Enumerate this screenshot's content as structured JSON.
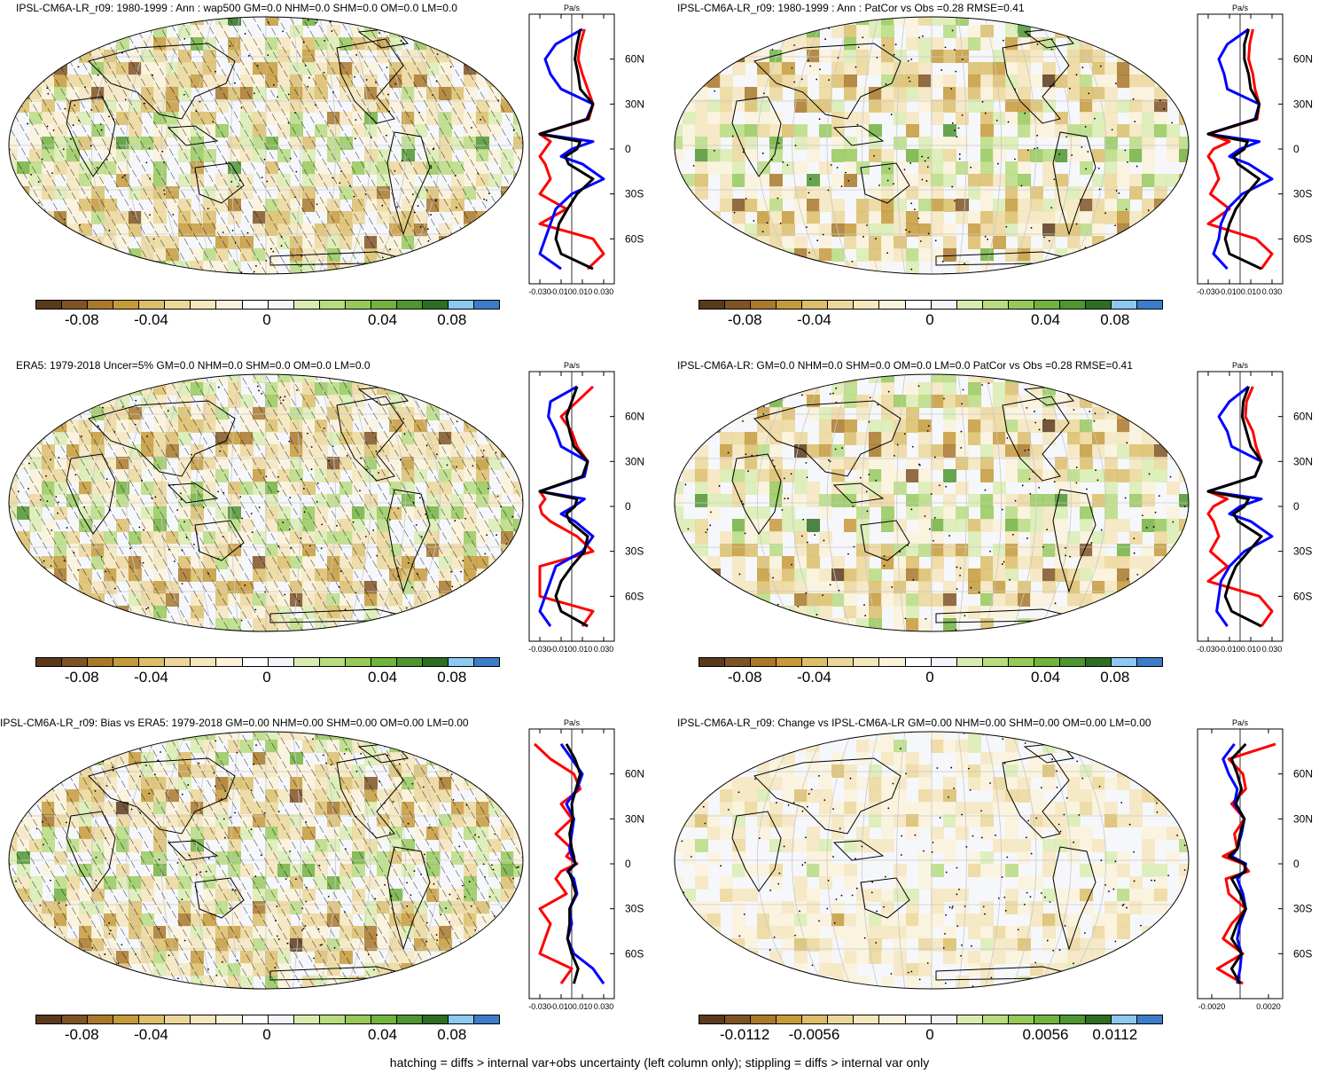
{
  "footer": "hatching = diffs > internal var+obs uncertainty (left column only); stippling = diffs > internal var only",
  "colors": {
    "palette": [
      "#5a3a1c",
      "#7f5424",
      "#a9782a",
      "#c59a3a",
      "#dcbe6a",
      "#ecd79a",
      "#f4e6bd",
      "#faf2da",
      "#ffffff",
      "#f3f5fb",
      "#d9ecb0",
      "#b8dc80",
      "#96c95a",
      "#72b23e",
      "#4f9530",
      "#2f6e22",
      "#8cc8f0",
      "#3c7cc8"
    ],
    "land_outline": "#000000",
    "grid": "#c9c9c9",
    "series_red": "#ff0000",
    "series_blue": "#0000ff",
    "series_black": "#000000"
  },
  "panels": [
    {
      "title": "IPSL-CM6A-LR_r09: 1980-1999 : Ann : wap500 GM=0.0 NHM=0.0 SHM=0.0 OM=0.0 LM=0.0",
      "hatching": true,
      "colorbar_labels": [
        "-0.08",
        "-0.04",
        "0",
        "0.04",
        "0.08"
      ],
      "zonal_unit": "Pa/s",
      "zonal_xticks": [
        "-0.030",
        "-0.010",
        "0.010",
        "0.030"
      ],
      "zonal_xlim": [
        -0.04,
        0.04
      ],
      "zonal_yticks": [
        "60N",
        "30N",
        "0",
        "30S",
        "60S"
      ]
    },
    {
      "title": "IPSL-CM6A-LR_r09: 1980-1999 : Ann : PatCor vs Obs =0.28 RMSE=0.41",
      "hatching": false,
      "colorbar_labels": [
        "-0.08",
        "-0.04",
        "0",
        "0.04",
        "0.08"
      ],
      "zonal_unit": "Pa/s",
      "zonal_xticks": [
        "-0.030",
        "-0.010",
        "0.010",
        "0.030"
      ],
      "zonal_xlim": [
        -0.04,
        0.04
      ],
      "zonal_yticks": [
        "60N",
        "30N",
        "0",
        "30S",
        "60S"
      ]
    },
    {
      "title": "ERA5: 1979-2018 Uncer=5% GM=0.0 NHM=0.0 SHM=0.0 OM=0.0 LM=0.0",
      "hatching": true,
      "colorbar_labels": [
        "-0.08",
        "-0.04",
        "0",
        "0.04",
        "0.08"
      ],
      "zonal_unit": "Pa/s",
      "zonal_xticks": [
        "-0.030",
        "-0.010",
        "0.010",
        "0.030"
      ],
      "zonal_xlim": [
        -0.04,
        0.04
      ],
      "zonal_yticks": [
        "60N",
        "30N",
        "0",
        "30S",
        "60S"
      ]
    },
    {
      "title": "IPSL-CM6A-LR: GM=0.0 NHM=0.0 SHM=0.0 OM=0.0 LM=0.0 PatCor vs Obs =0.28 RMSE=0.41",
      "hatching": false,
      "colorbar_labels": [
        "-0.08",
        "-0.04",
        "0",
        "0.04",
        "0.08"
      ],
      "zonal_unit": "Pa/s",
      "zonal_xticks": [
        "-0.030",
        "-0.010",
        "0.010",
        "0.030"
      ],
      "zonal_xlim": [
        -0.04,
        0.04
      ],
      "zonal_yticks": [
        "60N",
        "30N",
        "0",
        "30S",
        "60S"
      ]
    },
    {
      "title": "IPSL-CM6A-LR_r09: Bias vs ERA5: 1979-2018 GM=0.00 NHM=0.00 SHM=0.00 OM=0.00 LM=0.00",
      "hatching": true,
      "colorbar_labels": [
        "-0.08",
        "-0.04",
        "0",
        "0.04",
        "0.08"
      ],
      "zonal_unit": "Pa/s",
      "zonal_xticks": [
        "-0.030",
        "-0.010",
        "0.010",
        "0.030"
      ],
      "zonal_xlim": [
        -0.04,
        0.04
      ],
      "zonal_yticks": [
        "60N",
        "30N",
        "0",
        "30S",
        "60S"
      ]
    },
    {
      "title": "IPSL-CM6A-LR_r09: Change vs IPSL-CM6A-LR GM=0.00 NHM=0.00 SHM=0.00 OM=0.00 LM=0.00",
      "hatching": false,
      "colorbar_labels": [
        "-0.0112",
        "-0.0056",
        "0",
        "0.0056",
        "0.0112"
      ],
      "zonal_unit": "Pa/s",
      "zonal_xticks": [
        "-0.0020",
        "0.0020"
      ],
      "zonal_xlim": [
        -0.003,
        0.003
      ],
      "zonal_yticks": [
        "60N",
        "30N",
        "0",
        "30S",
        "60S"
      ]
    }
  ],
  "chart_data": [
    {
      "type": "line",
      "title": "IPSL-CM6A-LR_r09: 1980-1999 : Ann : wap500 GM=0.0 NHM=0.0 SHM=0.0 OM=0.0 LM=0.0",
      "xlabel": "Pa/s",
      "xlim": [
        -0.04,
        0.04
      ],
      "ylim": [
        -90,
        90
      ],
      "y": [
        80,
        70,
        60,
        50,
        40,
        30,
        20,
        10,
        5,
        0,
        -5,
        -10,
        -20,
        -30,
        -40,
        -50,
        -60,
        -70,
        -80
      ],
      "series": [
        {
          "color": "#ff0000",
          "values": [
            0.012,
            0.008,
            0.006,
            0.01,
            0.015,
            0.02,
            0.016,
            -0.03,
            -0.02,
            -0.025,
            -0.03,
            -0.025,
            -0.02,
            -0.03,
            -0.005,
            -0.03,
            0.02,
            0.03,
            0.015
          ]
        },
        {
          "color": "#0000ff",
          "values": [
            0.01,
            -0.015,
            -0.025,
            -0.02,
            -0.01,
            0.02,
            0.014,
            -0.03,
            0.02,
            0.0,
            -0.01,
            0.01,
            0.03,
            0.0,
            -0.015,
            -0.02,
            -0.025,
            -0.03,
            -0.01
          ]
        },
        {
          "color": "#000000",
          "values": [
            0.008,
            0.005,
            0.003,
            0.006,
            0.008,
            0.02,
            0.015,
            -0.03,
            0.008,
            0.005,
            -0.006,
            -0.003,
            0.02,
            0.005,
            -0.004,
            -0.012,
            -0.015,
            -0.01,
            0.02
          ]
        }
      ]
    },
    {
      "type": "line",
      "title": "IPSL-CM6A-LR_r09: 1980-1999 : Ann : PatCor vs Obs =0.28 RMSE=0.41",
      "xlabel": "Pa/s",
      "xlim": [
        -0.04,
        0.04
      ],
      "ylim": [
        -90,
        90
      ],
      "y": [
        80,
        70,
        60,
        50,
        40,
        30,
        20,
        10,
        5,
        0,
        -5,
        -10,
        -20,
        -30,
        -40,
        -50,
        -60,
        -70,
        -80
      ],
      "series": [
        {
          "color": "#ff0000",
          "values": [
            0.012,
            0.009,
            0.008,
            0.012,
            0.014,
            0.018,
            0.016,
            -0.03,
            -0.01,
            -0.025,
            -0.03,
            -0.025,
            -0.02,
            -0.028,
            -0.01,
            -0.03,
            0.015,
            0.03,
            0.02
          ]
        },
        {
          "color": "#0000ff",
          "values": [
            0.008,
            -0.012,
            -0.02,
            -0.015,
            -0.012,
            0.018,
            0.014,
            -0.03,
            0.018,
            0.0,
            -0.01,
            0.008,
            0.03,
            0.002,
            -0.012,
            -0.018,
            -0.02,
            -0.025,
            -0.012
          ]
        },
        {
          "color": "#000000",
          "values": [
            0.008,
            0.004,
            0.004,
            0.008,
            0.01,
            0.018,
            0.015,
            -0.03,
            0.007,
            0.004,
            -0.006,
            -0.002,
            0.018,
            0.006,
            -0.004,
            -0.01,
            -0.014,
            -0.01,
            0.02
          ]
        }
      ]
    },
    {
      "type": "line",
      "title": "ERA5: 1979-2018 Uncer=5% GM=0.0 NHM=0.0 SHM=0.0 OM=0.0 LM=0.0",
      "xlabel": "Pa/s",
      "xlim": [
        -0.04,
        0.04
      ],
      "ylim": [
        -90,
        90
      ],
      "y": [
        80,
        70,
        60,
        50,
        40,
        30,
        20,
        10,
        5,
        0,
        -5,
        -10,
        -20,
        -30,
        -40,
        -50,
        -60,
        -70,
        -80
      ],
      "series": [
        {
          "color": "#ff0000",
          "values": [
            0.02,
            0.005,
            -0.01,
            0.0,
            0.005,
            0.015,
            0.01,
            -0.03,
            -0.025,
            -0.03,
            -0.028,
            -0.02,
            0.005,
            0.02,
            -0.03,
            -0.03,
            -0.03,
            0.02,
            0.01
          ]
        },
        {
          "color": "#0000ff",
          "values": [
            0.005,
            -0.02,
            -0.022,
            -0.015,
            -0.01,
            0.015,
            0.012,
            -0.03,
            0.012,
            0.002,
            -0.01,
            0.003,
            0.02,
            0.01,
            -0.015,
            -0.02,
            -0.025,
            -0.03,
            -0.02
          ]
        },
        {
          "color": "#000000",
          "values": [
            0.005,
            0.0,
            -0.005,
            -0.002,
            0.002,
            0.015,
            0.01,
            -0.03,
            0.005,
            0.003,
            -0.005,
            -0.002,
            0.015,
            0.012,
            0.0,
            -0.01,
            -0.015,
            -0.01,
            0.015
          ]
        }
      ]
    },
    {
      "type": "line",
      "title": "IPSL-CM6A-LR: GM=0.0 NHM=0.0 SHM=0.0 OM=0.0 LM=0.0 PatCor vs Obs =0.28 RMSE=0.41",
      "xlabel": "Pa/s",
      "xlim": [
        -0.04,
        0.04
      ],
      "ylim": [
        -90,
        90
      ],
      "y": [
        80,
        70,
        60,
        50,
        40,
        30,
        20,
        10,
        5,
        0,
        -5,
        -10,
        -20,
        -30,
        -40,
        -50,
        -60,
        -70,
        -80
      ],
      "series": [
        {
          "color": "#ff0000",
          "values": [
            0.012,
            0.006,
            0.005,
            0.012,
            0.015,
            0.02,
            0.014,
            -0.03,
            -0.012,
            -0.025,
            -0.03,
            -0.025,
            -0.02,
            -0.028,
            -0.012,
            -0.03,
            0.018,
            0.03,
            0.02
          ]
        },
        {
          "color": "#0000ff",
          "values": [
            0.008,
            -0.01,
            -0.02,
            -0.012,
            -0.008,
            0.02,
            0.014,
            -0.03,
            0.02,
            0.0,
            -0.01,
            0.01,
            0.03,
            0.004,
            -0.01,
            -0.018,
            -0.02,
            -0.022,
            -0.012
          ]
        },
        {
          "color": "#000000",
          "values": [
            0.008,
            0.003,
            0.002,
            0.006,
            0.01,
            0.02,
            0.014,
            -0.03,
            0.008,
            0.004,
            -0.006,
            -0.002,
            0.02,
            0.008,
            -0.004,
            -0.01,
            -0.014,
            -0.008,
            0.02
          ]
        }
      ]
    },
    {
      "type": "line",
      "title": "IPSL-CM6A-LR_r09: Bias vs ERA5: 1979-2018 GM=0.00 NHM=0.00 SHM=0.00 OM=0.00 LM=0.00",
      "xlabel": "Pa/s",
      "xlim": [
        -0.04,
        0.04
      ],
      "ylim": [
        -90,
        90
      ],
      "y": [
        80,
        70,
        60,
        50,
        40,
        30,
        20,
        10,
        5,
        0,
        -5,
        -10,
        -20,
        -30,
        -40,
        -50,
        -60,
        -70,
        -80
      ],
      "series": [
        {
          "color": "#ff0000",
          "values": [
            -0.035,
            -0.02,
            0.002,
            0.008,
            -0.01,
            0.0,
            -0.015,
            0.0,
            -0.005,
            0.005,
            -0.01,
            -0.015,
            -0.005,
            -0.03,
            -0.02,
            -0.025,
            -0.03,
            0.0,
            -0.01
          ]
        },
        {
          "color": "#0000ff",
          "values": [
            -0.01,
            0.0,
            0.01,
            0.005,
            -0.005,
            0.002,
            0.0,
            -0.002,
            0.0,
            0.004,
            -0.004,
            0.002,
            0.005,
            -0.002,
            0.0,
            -0.004,
            0.002,
            0.02,
            0.03
          ]
        },
        {
          "color": "#000000",
          "values": [
            -0.005,
            0.003,
            0.008,
            0.004,
            0.0,
            0.001,
            -0.002,
            0.0,
            0.002,
            0.003,
            -0.003,
            0.0,
            0.004,
            -0.002,
            -0.002,
            -0.004,
            0.0,
            0.006,
            0.002
          ]
        }
      ]
    },
    {
      "type": "line",
      "title": "IPSL-CM6A-LR_r09: Change vs IPSL-CM6A-LR GM=0.00 NHM=0.00 SHM=0.00 OM=0.00 LM=0.00",
      "xlabel": "Pa/s",
      "xlim": [
        -0.003,
        0.003
      ],
      "ylim": [
        -90,
        90
      ],
      "y": [
        80,
        70,
        60,
        50,
        40,
        30,
        20,
        10,
        5,
        0,
        -5,
        -10,
        -20,
        -30,
        -40,
        -50,
        -60,
        -70,
        -80
      ],
      "series": [
        {
          "color": "#ff0000",
          "values": [
            0.0025,
            -0.0008,
            0.0002,
            0.0004,
            -0.0006,
            0.0003,
            -0.0004,
            -0.0002,
            -0.0012,
            0.0002,
            0.0006,
            -0.001,
            -0.0008,
            0.0004,
            -0.0006,
            -0.0012,
            0.0002,
            -0.0016,
            0.0002
          ]
        },
        {
          "color": "#0000ff",
          "values": [
            -0.0004,
            -0.0012,
            -0.0008,
            -0.0002,
            -0.0004,
            0.0003,
            0.0001,
            -0.0002,
            -0.0006,
            0.0004,
            0.0003,
            -0.0002,
            0.0002,
            0.0004,
            0.0,
            -0.0002,
            0.0001,
            0.0,
            -0.0002
          ]
        },
        {
          "color": "#000000",
          "values": [
            0.0004,
            -0.0006,
            -0.0002,
            0.0001,
            -0.0003,
            0.0003,
            0.0,
            -0.0002,
            -0.0008,
            0.0003,
            0.0004,
            -0.0006,
            0.0,
            0.0004,
            -0.0002,
            -0.0006,
            0.0001,
            -0.0006,
            0.0
          ]
        }
      ]
    }
  ]
}
